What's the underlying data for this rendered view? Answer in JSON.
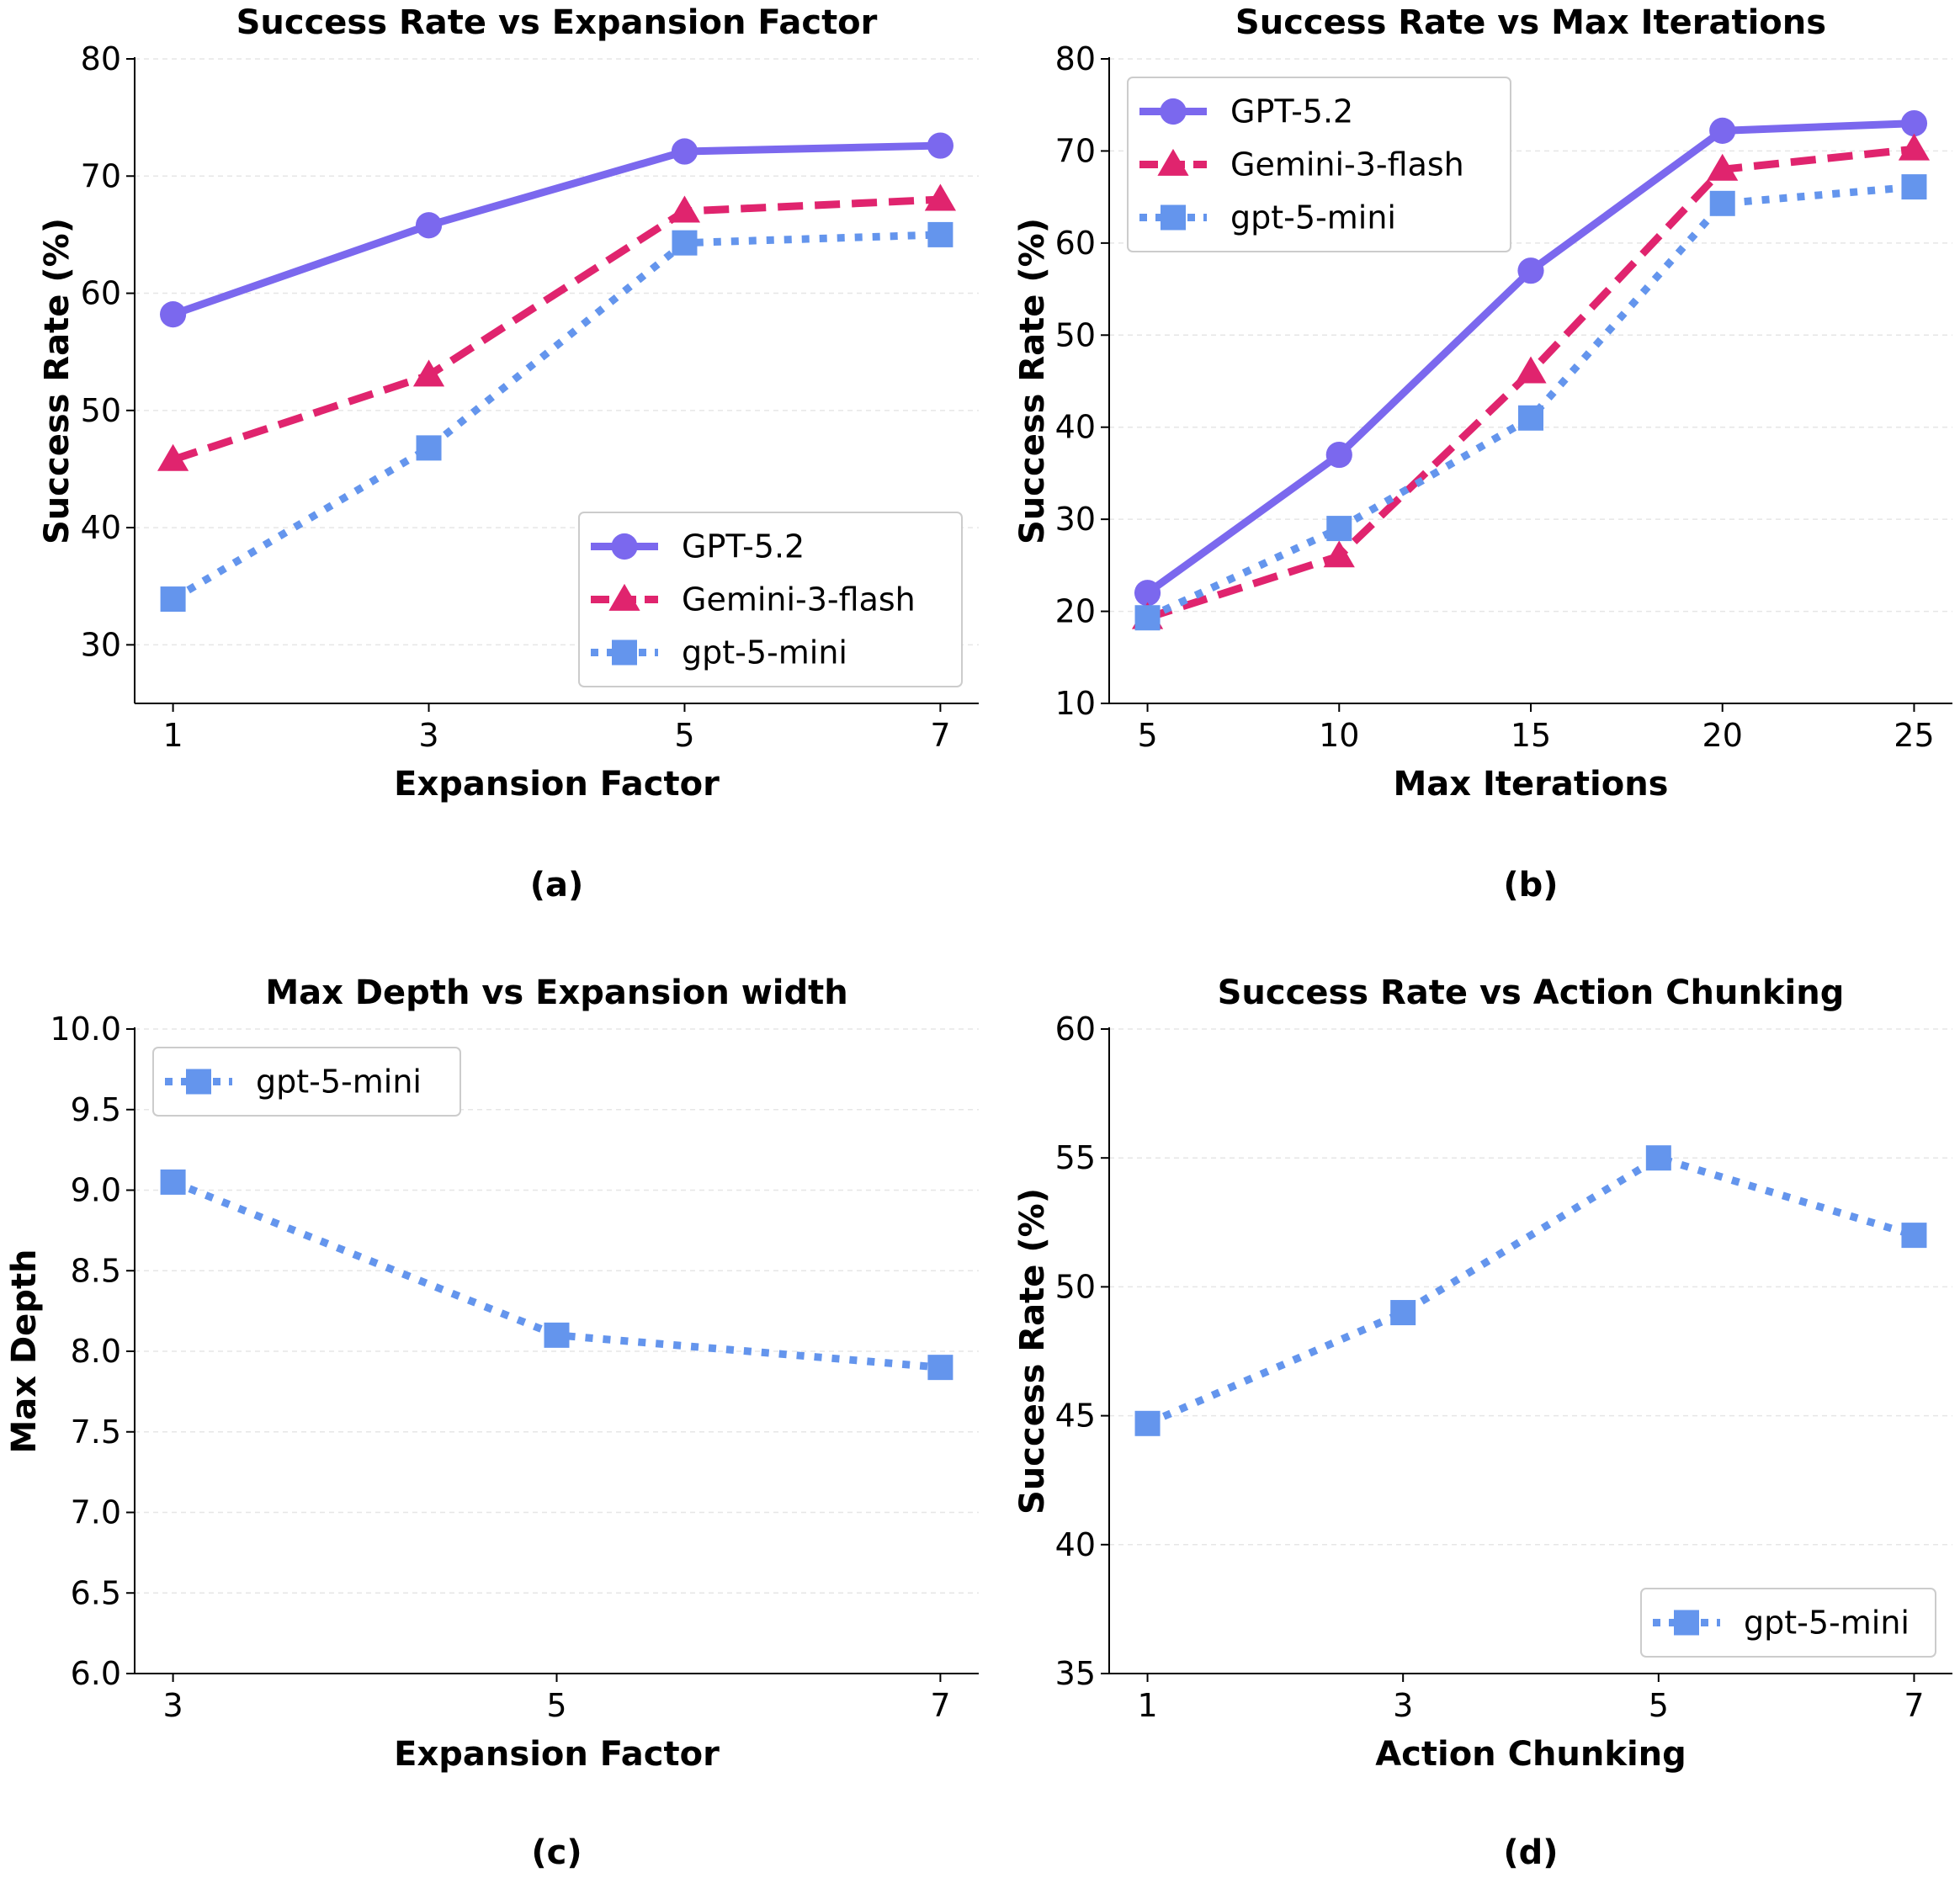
{
  "colors": {
    "GPT-5.2": "#7b68ee",
    "Gemini-3-flash": "#e0246e",
    "gpt-5-mini": "#6495ed"
  },
  "chart_data": [
    {
      "type": "line",
      "title": "Success Rate vs Expansion Factor",
      "xlabel": "Expansion Factor",
      "ylabel": "Success Rate (%)",
      "caption": "(a)",
      "x": [
        1,
        3,
        5,
        7
      ],
      "xticks": [
        "1",
        "3",
        "5",
        "7"
      ],
      "xlim": [
        0.7,
        7.3
      ],
      "ylim": [
        25,
        80
      ],
      "yticks": [
        30,
        40,
        50,
        60,
        70,
        80
      ],
      "ytick_labels": [
        "30",
        "40",
        "50",
        "60",
        "70",
        "80"
      ],
      "legend_position": "lower-right",
      "series": [
        {
          "name": "GPT-5.2",
          "values": [
            58.2,
            65.8,
            72.1,
            72.6
          ],
          "style": "solid",
          "marker": "circle"
        },
        {
          "name": "Gemini-3-flash",
          "values": [
            45.8,
            53.0,
            67.0,
            68.0
          ],
          "style": "dashed",
          "marker": "triangle"
        },
        {
          "name": "gpt-5-mini",
          "values": [
            33.9,
            46.8,
            64.3,
            65.0
          ],
          "style": "dotted",
          "marker": "square"
        }
      ]
    },
    {
      "type": "line",
      "title": "Success Rate vs Max Iterations",
      "xlabel": "Max Iterations",
      "ylabel": "Success Rate (%)",
      "caption": "(b)",
      "x": [
        5,
        10,
        15,
        20,
        25
      ],
      "xticks": [
        "5",
        "10",
        "15",
        "20",
        "25"
      ],
      "xlim": [
        4,
        26
      ],
      "ylim": [
        10,
        80
      ],
      "yticks": [
        10,
        20,
        30,
        40,
        50,
        60,
        70,
        80
      ],
      "ytick_labels": [
        "10",
        "20",
        "30",
        "40",
        "50",
        "60",
        "70",
        "80"
      ],
      "legend_position": "upper-left",
      "series": [
        {
          "name": "GPT-5.2",
          "values": [
            22.0,
            37.0,
            57.0,
            72.2,
            73.0
          ],
          "style": "solid",
          "marker": "circle"
        },
        {
          "name": "Gemini-3-flash",
          "values": [
            19.3,
            26.0,
            46.0,
            68.0,
            70.2
          ],
          "style": "dashed",
          "marker": "triangle"
        },
        {
          "name": "gpt-5-mini",
          "values": [
            19.3,
            29.0,
            41.0,
            64.3,
            66.1
          ],
          "style": "dotted",
          "marker": "square"
        }
      ]
    },
    {
      "type": "line",
      "title": "Max Depth vs Expansion width",
      "xlabel": "Expansion Factor",
      "ylabel": "Max Depth",
      "caption": "(c)",
      "x": [
        3,
        5,
        7
      ],
      "xticks": [
        "3",
        "5",
        "7"
      ],
      "xlim": [
        2.8,
        7.2
      ],
      "ylim": [
        6.0,
        10.0
      ],
      "yticks": [
        6.0,
        6.5,
        7.0,
        7.5,
        8.0,
        8.5,
        9.0,
        9.5,
        10.0
      ],
      "ytick_labels": [
        "6.0",
        "6.5",
        "7.0",
        "7.5",
        "8.0",
        "8.5",
        "9.0",
        "9.5",
        "10.0"
      ],
      "legend_position": "upper-left",
      "series": [
        {
          "name": "gpt-5-mini",
          "values": [
            9.05,
            8.1,
            7.9
          ],
          "style": "dotted",
          "marker": "square"
        }
      ]
    },
    {
      "type": "line",
      "title": "Success Rate vs Action Chunking",
      "xlabel": "Action Chunking",
      "ylabel": "Success Rate (%)",
      "caption": "(d)",
      "x": [
        1,
        3,
        5,
        7
      ],
      "xticks": [
        "1",
        "3",
        "5",
        "7"
      ],
      "xlim": [
        0.7,
        7.3
      ],
      "ylim": [
        35,
        60
      ],
      "yticks": [
        35,
        40,
        45,
        50,
        55,
        60
      ],
      "ytick_labels": [
        "35",
        "40",
        "45",
        "50",
        "55",
        "60"
      ],
      "legend_position": "lower-right",
      "series": [
        {
          "name": "gpt-5-mini",
          "values": [
            44.7,
            49.0,
            55.0,
            52.0
          ],
          "style": "dotted",
          "marker": "square"
        }
      ]
    }
  ]
}
